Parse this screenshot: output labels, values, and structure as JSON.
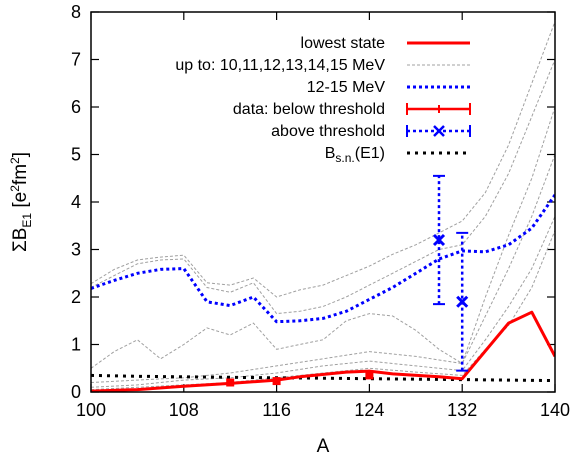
{
  "chart_data": {
    "type": "line",
    "xlabel": "A",
    "ylabel": "ΣB",
    "ylabel_sub": "E1",
    "ylabel_unit_open": " [e",
    "ylabel_unit_sup1": "2",
    "ylabel_unit_mid": "fm",
    "ylabel_unit_sup2": "2",
    "ylabel_unit_close": "]",
    "xlim": [
      100,
      140
    ],
    "ylim": [
      0,
      8
    ],
    "x_ticks": [
      100,
      108,
      116,
      124,
      132,
      140
    ],
    "y_ticks": [
      0,
      1,
      2,
      3,
      4,
      5,
      6,
      7,
      8
    ],
    "grid": false,
    "legend_position": "top-right",
    "colors": {
      "lowest_state": "#ff0000",
      "cumulative": "#a0a0a0",
      "band_12_15": "#0000ff",
      "data": "#ff0000",
      "above": "#0000ff",
      "bsn": "#000000"
    },
    "legend": {
      "lowest_state": "lowest state",
      "cumulative": "up to: 10,11,12,13,14,15 MeV",
      "band_12_15": "12-15 MeV",
      "data_below": "data: below threshold",
      "data_above": "above threshold",
      "bsn_prefix": "B",
      "bsn_sub": "s.n.",
      "bsn_suffix": "(E1)"
    },
    "series": {
      "lowest_state": {
        "name": "lowest state",
        "x": [
          100,
          104,
          108,
          112,
          116,
          118,
          122,
          124,
          126,
          130,
          132,
          136,
          138,
          140
        ],
        "y": [
          0.02,
          0.05,
          0.12,
          0.18,
          0.25,
          0.32,
          0.42,
          0.44,
          0.38,
          0.32,
          0.28,
          1.45,
          1.68,
          0.75
        ]
      },
      "band_12_15": {
        "name": "12-15 MeV",
        "x": [
          100,
          102,
          104,
          106,
          108,
          110,
          112,
          114,
          116,
          118,
          120,
          122,
          124,
          126,
          128,
          130,
          132,
          134,
          136,
          138,
          140
        ],
        "y": [
          2.18,
          2.35,
          2.5,
          2.58,
          2.6,
          1.9,
          1.82,
          2.0,
          1.48,
          1.5,
          1.55,
          1.7,
          1.95,
          2.2,
          2.5,
          2.8,
          2.97,
          2.95,
          3.1,
          3.45,
          4.15
        ]
      },
      "cumulative": {
        "name": "up to: 10,11,12,13,14,15 MeV",
        "curves": [
          {
            "x": [
              100,
              104,
              108,
              112,
              116,
              120,
              124,
              128,
              132,
              134,
              136,
              138,
              140
            ],
            "y": [
              0.05,
              0.1,
              0.15,
              0.2,
              0.3,
              0.4,
              0.5,
              0.42,
              0.35,
              0.9,
              1.4,
              2.2,
              3.4
            ]
          },
          {
            "x": [
              100,
              104,
              108,
              112,
              116,
              120,
              124,
              128,
              132,
              134,
              136,
              138,
              140
            ],
            "y": [
              0.1,
              0.15,
              0.25,
              0.3,
              0.4,
              0.55,
              0.65,
              0.55,
              0.45,
              1.1,
              1.8,
              2.6,
              3.7
            ]
          },
          {
            "x": [
              100,
              104,
              108,
              112,
              116,
              120,
              124,
              128,
              132,
              134,
              136,
              138,
              140
            ],
            "y": [
              0.2,
              0.25,
              0.3,
              0.4,
              0.55,
              0.7,
              0.85,
              0.75,
              0.6,
              1.6,
              2.6,
              3.7,
              5.0
            ]
          },
          {
            "x": [
              100,
              102,
              104,
              106,
              108,
              110,
              112,
              114,
              116,
              118,
              120,
              122,
              124,
              126,
              128,
              130,
              132,
              134,
              136,
              138,
              140
            ],
            "y": [
              0.5,
              0.85,
              1.1,
              0.7,
              1.0,
              1.35,
              1.2,
              1.45,
              0.9,
              1.0,
              1.1,
              1.5,
              1.65,
              1.6,
              1.3,
              0.9,
              0.6,
              2.0,
              3.3,
              4.5,
              6.0
            ]
          },
          {
            "x": [
              100,
              102,
              104,
              106,
              108,
              110,
              112,
              114,
              116,
              118,
              120,
              122,
              124,
              126,
              128,
              130,
              132,
              134,
              136,
              138,
              140
            ],
            "y": [
              2.2,
              2.45,
              2.7,
              2.78,
              2.8,
              2.2,
              2.1,
              2.3,
              1.65,
              1.7,
              1.8,
              2.0,
              2.25,
              2.5,
              2.75,
              3.0,
              3.1,
              3.7,
              4.6,
              5.8,
              7.0
            ]
          },
          {
            "x": [
              100,
              102,
              104,
              106,
              108,
              110,
              112,
              114,
              116,
              118,
              120,
              122,
              124,
              126,
              128,
              130,
              132,
              134,
              136,
              138,
              140
            ],
            "y": [
              2.28,
              2.58,
              2.78,
              2.84,
              2.88,
              2.3,
              2.25,
              2.4,
              2.0,
              2.15,
              2.25,
              2.45,
              2.65,
              2.9,
              3.1,
              3.35,
              3.6,
              4.2,
              5.2,
              6.5,
              7.8
            ]
          }
        ]
      },
      "data_below": {
        "name": "data: below threshold",
        "points": [
          {
            "x": 112,
            "y": 0.2,
            "err": 0.03
          },
          {
            "x": 116,
            "y": 0.23,
            "err": 0.04
          },
          {
            "x": 124,
            "y": 0.35,
            "err": 0.04
          }
        ]
      },
      "data_above": {
        "name": "above threshold",
        "points": [
          {
            "x": 130,
            "y": 3.2,
            "err_low": 1.35,
            "err_high": 1.35
          },
          {
            "x": 132,
            "y": 1.9,
            "err_low": 1.45,
            "err_high": 1.45
          }
        ]
      },
      "bsn": {
        "name": "Bs.n.(E1)",
        "x": [
          100,
          104,
          108,
          112,
          116,
          120,
          124,
          128,
          132,
          136,
          140
        ],
        "y": [
          0.35,
          0.33,
          0.32,
          0.31,
          0.3,
          0.29,
          0.28,
          0.27,
          0.26,
          0.25,
          0.24
        ]
      }
    }
  }
}
